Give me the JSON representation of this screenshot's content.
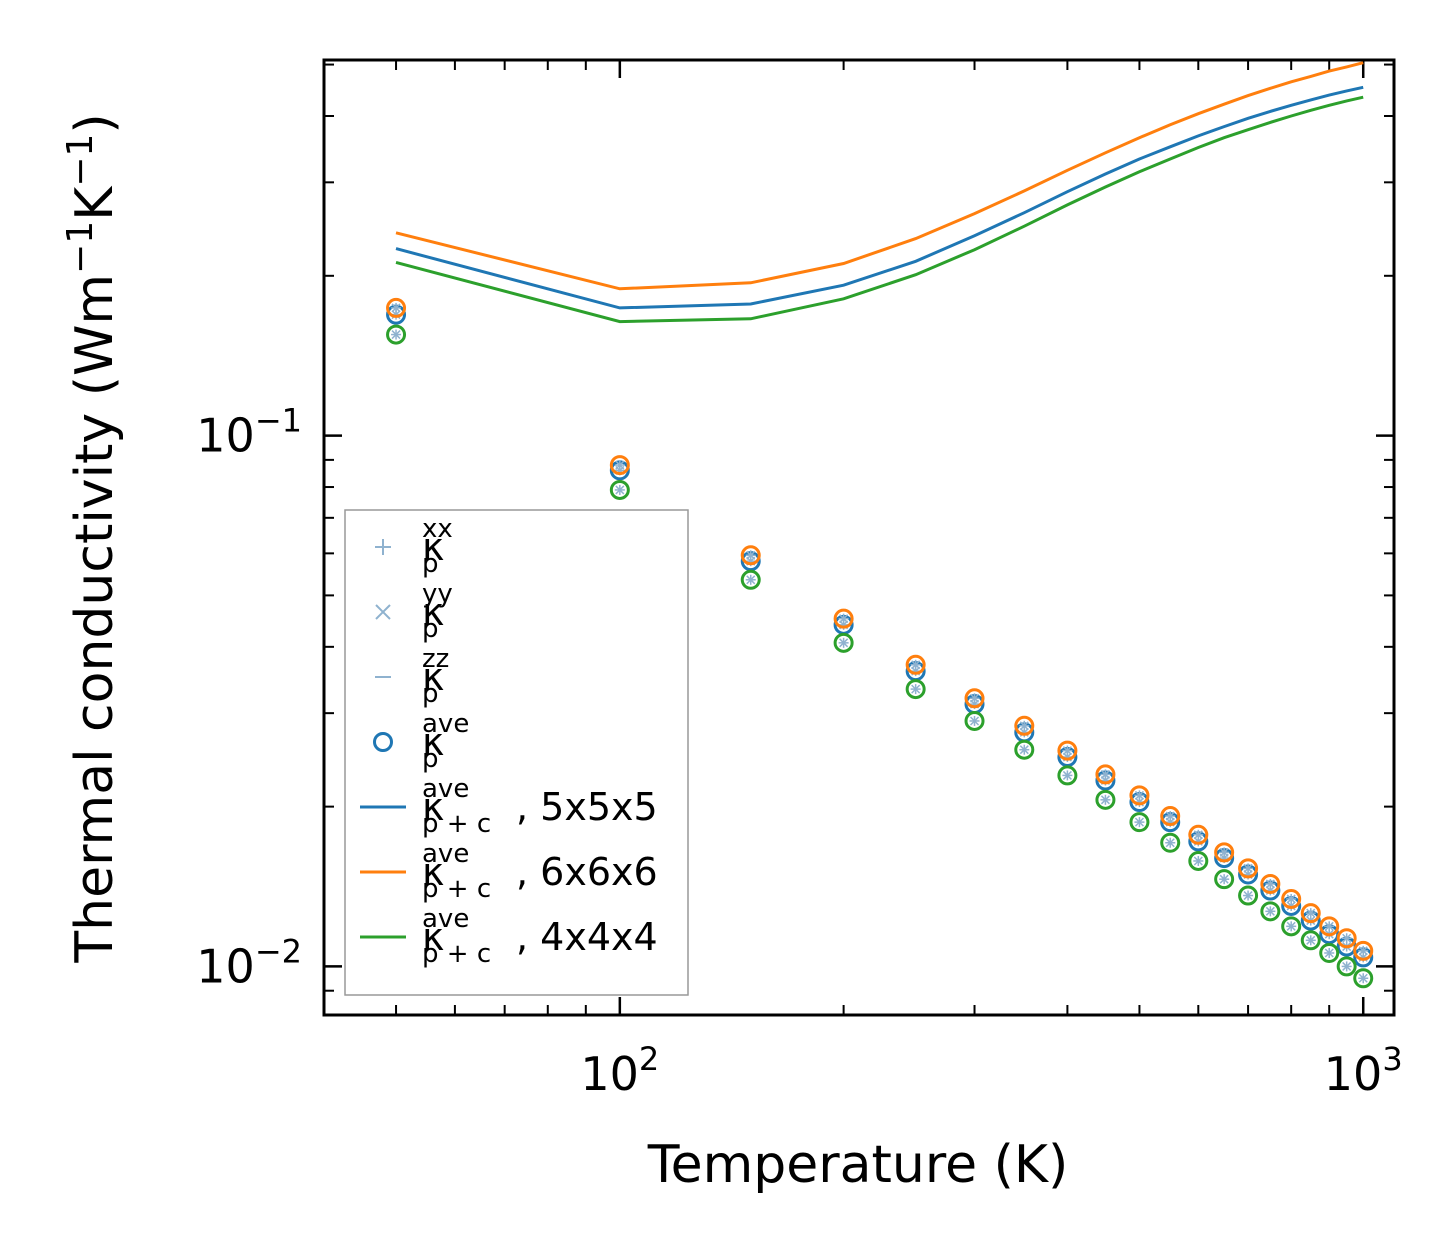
{
  "chart_data": {
    "type": "line",
    "xscale": "log",
    "yscale": "log",
    "xlabel": "Temperature (K)",
    "ylabel": {
      "main": "Thermal conductivity (Wm",
      "sup1": "−1",
      "mid": "K",
      "sup2": "−1",
      "close": ")"
    },
    "xlim": [
      40,
      1100
    ],
    "ylim": [
      0.0081,
      0.51
    ],
    "xticks": [
      {
        "value": 100,
        "base": "10",
        "exp": "2"
      },
      {
        "value": 1000,
        "base": "10",
        "exp": "3"
      }
    ],
    "yticks": [
      {
        "value": 0.01,
        "base": "10",
        "exp": "−2"
      },
      {
        "value": 0.1,
        "base": "10",
        "exp": "−1"
      }
    ],
    "x": [
      50,
      100,
      150,
      200,
      250,
      300,
      350,
      400,
      450,
      500,
      550,
      600,
      650,
      700,
      750,
      800,
      850,
      900,
      950,
      1000
    ],
    "series": [
      {
        "name": "5x5x5",
        "color": "#1f77b4",
        "kind": "line",
        "values": [
          0.225,
          0.174,
          0.177,
          0.192,
          0.213,
          0.238,
          0.263,
          0.288,
          0.311,
          0.332,
          0.35,
          0.367,
          0.382,
          0.396,
          0.408,
          0.419,
          0.429,
          0.438,
          0.446,
          0.453
        ]
      },
      {
        "name": "6x6x6",
        "color": "#ff7f0e",
        "kind": "line",
        "values": [
          0.241,
          0.189,
          0.194,
          0.211,
          0.235,
          0.262,
          0.289,
          0.316,
          0.341,
          0.364,
          0.385,
          0.404,
          0.421,
          0.437,
          0.451,
          0.464,
          0.475,
          0.486,
          0.495,
          0.504
        ]
      },
      {
        "name": "4x4x4",
        "color": "#2ca02c",
        "kind": "line",
        "values": [
          0.212,
          0.164,
          0.166,
          0.181,
          0.201,
          0.224,
          0.248,
          0.272,
          0.294,
          0.314,
          0.332,
          0.349,
          0.364,
          0.377,
          0.389,
          0.4,
          0.41,
          0.419,
          0.427,
          0.434
        ]
      },
      {
        "name": "5x5x5",
        "color": "#1f77b4",
        "kind": "points",
        "values": [
          0.169,
          0.086,
          0.058,
          0.044,
          0.036,
          0.0312,
          0.0276,
          0.0248,
          0.0224,
          0.0204,
          0.0187,
          0.0172,
          0.016,
          0.0149,
          0.0139,
          0.013,
          0.0122,
          0.0115,
          0.0109,
          0.0104
        ]
      },
      {
        "name": "6x6x6",
        "color": "#ff7f0e",
        "kind": "points",
        "values": [
          0.174,
          0.088,
          0.0595,
          0.0452,
          0.037,
          0.032,
          0.0284,
          0.0255,
          0.023,
          0.021,
          0.0192,
          0.0177,
          0.0164,
          0.0153,
          0.0143,
          0.0134,
          0.0126,
          0.0119,
          0.0113,
          0.0107
        ]
      },
      {
        "name": "4x4x4",
        "color": "#2ca02c",
        "kind": "points",
        "values": [
          0.155,
          0.079,
          0.0535,
          0.0407,
          0.0333,
          0.029,
          0.0256,
          0.0229,
          0.0206,
          0.0187,
          0.0171,
          0.0158,
          0.0146,
          0.0136,
          0.0127,
          0.0119,
          0.0112,
          0.0106,
          0.01,
          0.0095
        ]
      }
    ],
    "legend": {
      "position": "lower-left",
      "entries": [
        {
          "marker": "plus",
          "color": "#8fb2cf",
          "base": "κ",
          "sub": "p",
          "sup": "xx",
          "suffix": ""
        },
        {
          "marker": "x",
          "color": "#8fb2cf",
          "base": "κ",
          "sub": "p",
          "sup": "yy",
          "suffix": ""
        },
        {
          "marker": "dash",
          "color": "#8fb2cf",
          "base": "κ",
          "sub": "p",
          "sup": "zz",
          "suffix": ""
        },
        {
          "marker": "circle",
          "color": "#1f77b4",
          "base": "κ",
          "sub": "p",
          "sup": "ave",
          "suffix": ""
        },
        {
          "marker": "line",
          "color": "#1f77b4",
          "base": "κ",
          "sub": "p + c",
          "sup": "ave",
          "suffix": ", 5x5x5"
        },
        {
          "marker": "line",
          "color": "#ff7f0e",
          "base": "κ",
          "sub": "p + c",
          "sup": "ave",
          "suffix": ", 6x6x6"
        },
        {
          "marker": "line",
          "color": "#2ca02c",
          "base": "κ",
          "sub": "p + c",
          "sup": "ave",
          "suffix": ", 4x4x4"
        }
      ]
    }
  }
}
